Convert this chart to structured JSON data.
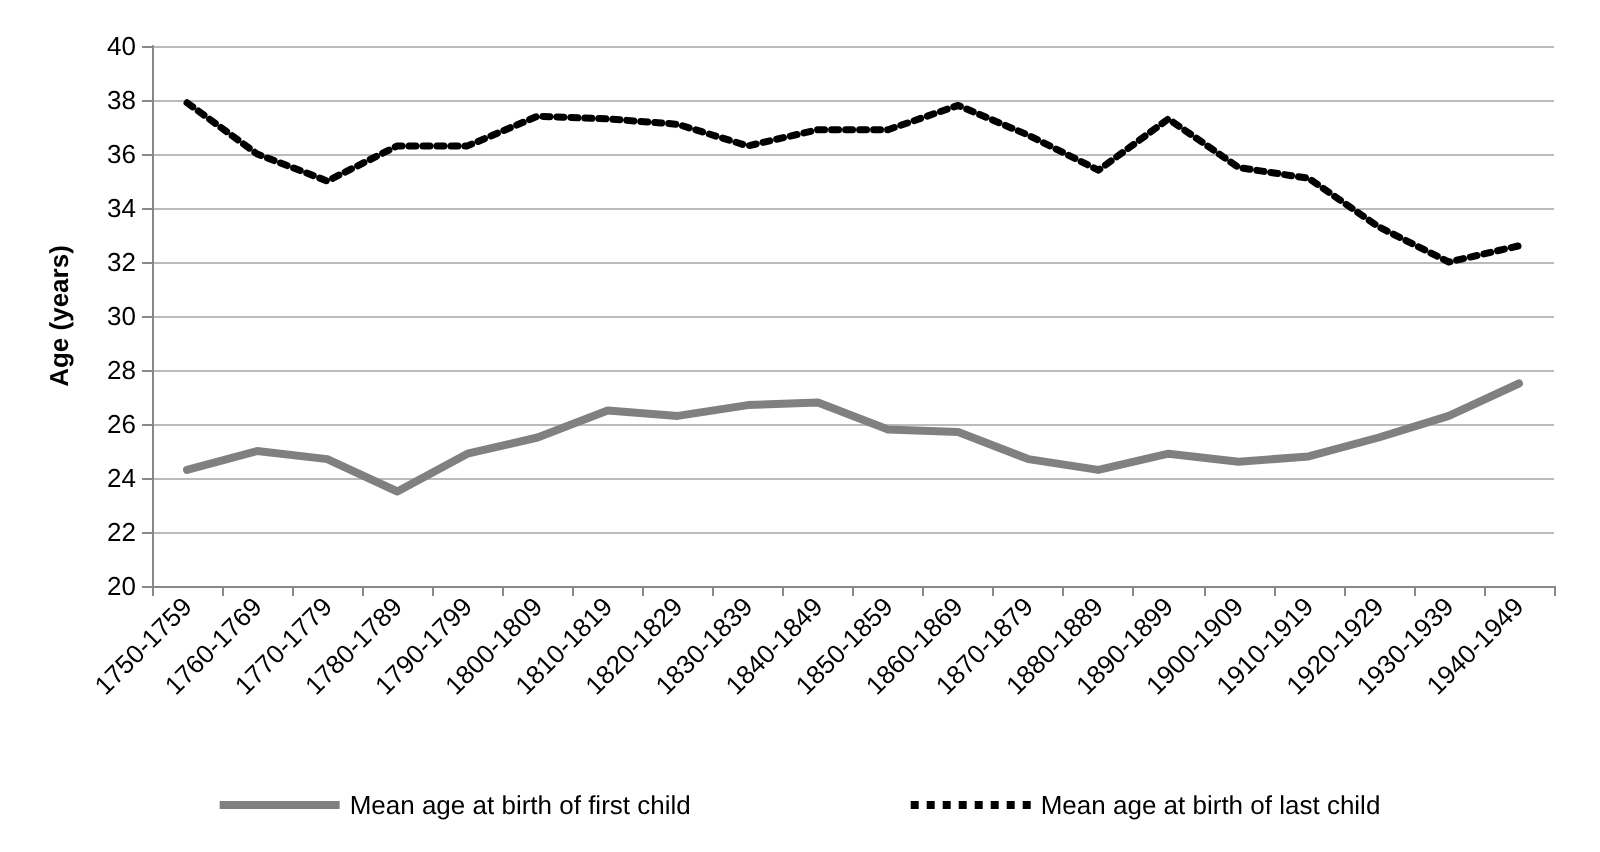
{
  "chart_data": {
    "type": "line",
    "ylabel": "Age (years)",
    "categories": [
      "1750-1759",
      "1760-1769",
      "1770-1779",
      "1780-1789",
      "1790-1799",
      "1800-1809",
      "1810-1819",
      "1820-1829",
      "1830-1839",
      "1840-1849",
      "1850-1859",
      "1860-1869",
      "1870-1879",
      "1880-1889",
      "1890-1899",
      "1900-1909",
      "1910-1919",
      "1920-1929",
      "1930-1939",
      "1940-1949"
    ],
    "series": [
      {
        "name": "Mean age at birth of first child",
        "color": "#808080",
        "line_style": "solid",
        "values": [
          24.3,
          25.0,
          24.7,
          23.5,
          24.9,
          25.5,
          26.5,
          26.3,
          26.7,
          26.8,
          25.8,
          25.7,
          24.7,
          24.3,
          24.9,
          24.6,
          24.8,
          25.5,
          26.3,
          27.5
        ]
      },
      {
        "name": "Mean age at birth of last child",
        "color": "#000000",
        "line_style": "dotted",
        "values": [
          37.9,
          36.0,
          35.0,
          36.3,
          36.3,
          37.4,
          37.3,
          37.1,
          36.3,
          36.9,
          36.9,
          37.8,
          36.7,
          35.4,
          37.3,
          35.5,
          35.1,
          33.3,
          32.0,
          32.6
        ]
      }
    ],
    "ylim": [
      20,
      40
    ],
    "yticks": [
      20,
      22,
      24,
      26,
      28,
      30,
      32,
      34,
      36,
      38,
      40
    ],
    "grid": "y",
    "legend": "bottom",
    "marker": "none"
  }
}
